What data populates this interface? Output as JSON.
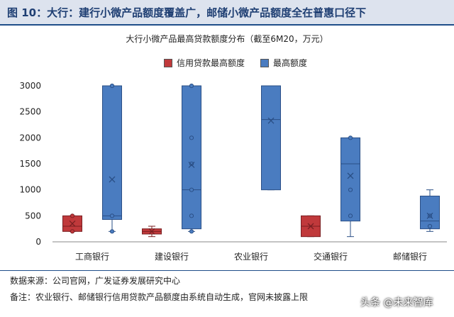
{
  "header": {
    "title": "图 10：大行：建行小微产品额度覆盖广，邮储小微产品额度全在普惠口径下"
  },
  "chart_data": {
    "type": "box",
    "title": "大行小微产品最高贷款额度分布（截至6M20，万元）",
    "categories": [
      "工商银行",
      "建设银行",
      "农业银行",
      "交通银行",
      "邮储银行"
    ],
    "ylim": [
      0,
      3000
    ],
    "yticks": [
      0,
      500,
      1000,
      1500,
      2000,
      2500,
      3000
    ],
    "colors": {
      "credit": "#c0393b",
      "max": "#4a7cc0"
    },
    "series": [
      {
        "name": "信用贷款最高额度",
        "boxes": [
          {
            "category": "工商银行",
            "q1": 200,
            "q3": 500,
            "median": 300,
            "mean": 350,
            "whisker_low": 200,
            "whisker_high": 500,
            "points": [
              200,
              500
            ]
          },
          {
            "category": "建设银行",
            "q1": 150,
            "q3": 250,
            "median": 200,
            "mean": 200,
            "whisker_low": 100,
            "whisker_high": 300,
            "points": []
          },
          null,
          {
            "category": "交通银行",
            "q1": 100,
            "q3": 500,
            "median": 300,
            "mean": 300,
            "whisker_low": 100,
            "whisker_high": 500,
            "points": []
          },
          null
        ]
      },
      {
        "name": "最高额度",
        "boxes": [
          {
            "category": "工商银行",
            "q1": 430,
            "q3": 3000,
            "median": 500,
            "mean": 1200,
            "whisker_low": 200,
            "whisker_high": 3000,
            "points": [
              200,
              500,
              3000
            ]
          },
          {
            "category": "建设银行",
            "q1": 250,
            "q3": 3000,
            "median": 1000,
            "mean": 1480,
            "whisker_low": 200,
            "whisker_high": 3000,
            "points": [
              200,
              500,
              1000,
              1500,
              2000,
              3000
            ]
          },
          {
            "category": "农业银行",
            "q1": 1000,
            "q3": 3000,
            "median": 2350,
            "mean": 2330,
            "whisker_low": 1000,
            "whisker_high": 3000,
            "points": []
          },
          {
            "category": "交通银行",
            "q1": 400,
            "q3": 2000,
            "median": 1500,
            "mean": 1270,
            "whisker_low": 100,
            "whisker_high": 2000,
            "points": [
              500,
              1000,
              2000
            ]
          },
          {
            "category": "邮储银行",
            "q1": 250,
            "q3": 880,
            "median": 400,
            "mean": 500,
            "whisker_low": 200,
            "whisker_high": 1000,
            "points": [
              300,
              500
            ]
          }
        ]
      }
    ]
  },
  "footer": {
    "source": "数据来源：公司官网，广发证券发展研究中心",
    "note": "备注：农业银行、邮储银行信用贷款产品额度由系统自动生成，官网未披露上限",
    "watermark": "头条 @未来智库"
  }
}
